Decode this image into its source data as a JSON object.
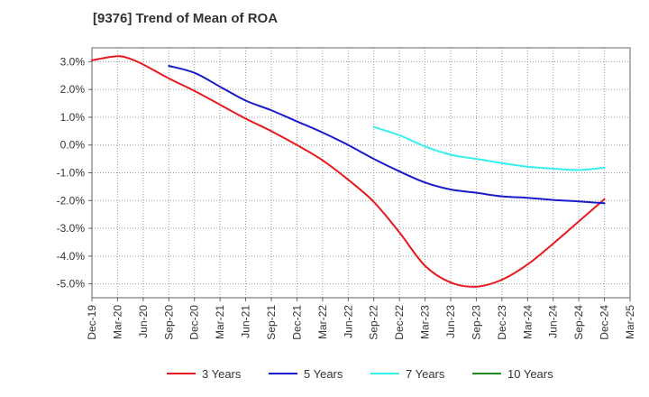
{
  "chart_data": {
    "type": "line",
    "title": "[9376]  Trend of Mean of ROA",
    "xlabel": "",
    "ylabel": "",
    "x_tick_labels": [
      "Dec-19",
      "Mar-20",
      "Jun-20",
      "Sep-20",
      "Dec-20",
      "Mar-21",
      "Jun-21",
      "Sep-21",
      "Dec-21",
      "Mar-22",
      "Jun-22",
      "Sep-22",
      "Dec-22",
      "Mar-23",
      "Jun-23",
      "Sep-23",
      "Dec-23",
      "Mar-24",
      "Jun-24",
      "Sep-24",
      "Dec-24",
      "Mar-25"
    ],
    "y_tick_labels": [
      "3.0%",
      "2.0%",
      "1.0%",
      "0.0%",
      "-1.0%",
      "-2.0%",
      "-3.0%",
      "-4.0%",
      "-5.0%"
    ],
    "y_tick_values": [
      3,
      2,
      1,
      0,
      -1,
      -2,
      -3,
      -4,
      -5
    ],
    "ylim": [
      -5.5,
      3.5
    ],
    "xlim": [
      0,
      21
    ],
    "grid": true,
    "legend_position": "bottom",
    "series": [
      {
        "name": "3 Years",
        "color": "#e8191e",
        "points": [
          [
            0,
            3.05
          ],
          [
            1,
            3.2
          ],
          [
            1.5,
            3.1
          ],
          [
            2,
            2.9
          ],
          [
            3,
            2.4
          ],
          [
            4,
            1.95
          ],
          [
            5,
            1.45
          ],
          [
            6,
            0.95
          ],
          [
            7,
            0.5
          ],
          [
            8,
            0.0
          ],
          [
            9,
            -0.55
          ],
          [
            10,
            -1.25
          ],
          [
            11,
            -2.05
          ],
          [
            12,
            -3.15
          ],
          [
            13,
            -4.35
          ],
          [
            14,
            -4.95
          ],
          [
            15,
            -5.1
          ],
          [
            16,
            -4.85
          ],
          [
            17,
            -4.3
          ],
          [
            18,
            -3.55
          ],
          [
            19,
            -2.75
          ],
          [
            20,
            -1.95
          ]
        ]
      },
      {
        "name": "5 Years",
        "color": "#1a1ac8",
        "points": [
          [
            3,
            2.85
          ],
          [
            4,
            2.6
          ],
          [
            5,
            2.1
          ],
          [
            6,
            1.6
          ],
          [
            7,
            1.25
          ],
          [
            8,
            0.85
          ],
          [
            9,
            0.45
          ],
          [
            10,
            0.0
          ],
          [
            11,
            -0.5
          ],
          [
            12,
            -0.95
          ],
          [
            13,
            -1.35
          ],
          [
            14,
            -1.6
          ],
          [
            15,
            -1.72
          ],
          [
            16,
            -1.85
          ],
          [
            17,
            -1.9
          ],
          [
            18,
            -1.98
          ],
          [
            19,
            -2.03
          ],
          [
            20,
            -2.1
          ]
        ]
      },
      {
        "name": "7 Years",
        "color": "#36f0f0",
        "points": [
          [
            11,
            0.65
          ],
          [
            12,
            0.35
          ],
          [
            13,
            -0.05
          ],
          [
            14,
            -0.35
          ],
          [
            15,
            -0.5
          ],
          [
            16,
            -0.65
          ],
          [
            17,
            -0.78
          ],
          [
            18,
            -0.85
          ],
          [
            19,
            -0.9
          ],
          [
            20,
            -0.82
          ]
        ]
      },
      {
        "name": "10 Years",
        "color": "#1f8c1f",
        "points": []
      }
    ]
  }
}
